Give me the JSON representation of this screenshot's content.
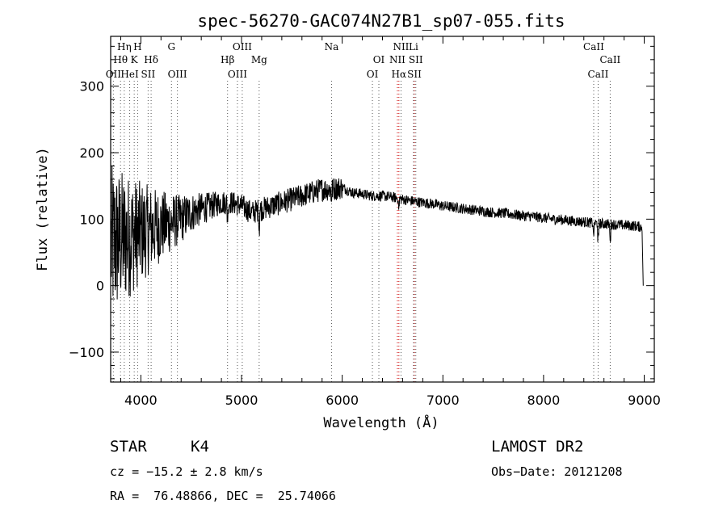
{
  "chart_data": {
    "type": "line",
    "title": "spec-56270-GAC074N27B1_sp07-055.fits",
    "xlabel": "Wavelength (Å)",
    "ylabel": "Flux (relative)",
    "xlim": [
      3700,
      9100
    ],
    "ylim": [
      -145,
      375
    ],
    "xticks": [
      4000,
      5000,
      6000,
      7000,
      8000,
      9000
    ],
    "yticks": [
      -100,
      0,
      100,
      200,
      300
    ],
    "spectrum": {
      "x": [
        3700,
        3800,
        3900,
        4000,
        4100,
        4200,
        4300,
        4400,
        4500,
        4600,
        4700,
        4800,
        4900,
        5000,
        5100,
        5200,
        5300,
        5400,
        5500,
        5600,
        5700,
        5800,
        5900,
        6000,
        6100,
        6200,
        6300,
        6400,
        6500,
        6600,
        6700,
        6800,
        6900,
        7000,
        7100,
        7200,
        7300,
        7400,
        7500,
        7600,
        7700,
        7800,
        7900,
        8000,
        8100,
        8200,
        8300,
        8400,
        8500,
        8600,
        8700,
        8800,
        8900,
        8980
      ],
      "y": [
        60,
        70,
        75,
        80,
        85,
        90,
        95,
        100,
        110,
        115,
        120,
        125,
        125,
        120,
        110,
        115,
        120,
        125,
        130,
        135,
        140,
        145,
        145,
        148,
        140,
        138,
        135,
        135,
        133,
        130,
        127,
        125,
        123,
        120,
        118,
        116,
        114,
        112,
        110,
        109,
        107,
        105,
        104,
        102,
        100,
        99,
        97,
        96,
        94,
        93,
        92,
        91,
        90,
        88
      ],
      "noise_amplitude_blue": 120,
      "noise_amplitude_red": 3
    },
    "spectral_lines": [
      {
        "label": "OII",
        "wavelength": 3727,
        "row": 3,
        "color": "#555555"
      },
      {
        "label": "Hθ",
        "wavelength": 3798,
        "row": 2,
        "color": "#555555"
      },
      {
        "label": "Hη",
        "wavelength": 3835,
        "row": 1,
        "color": "#555555"
      },
      {
        "label": "HeI",
        "wavelength": 3889,
        "row": 3,
        "color": "#555555"
      },
      {
        "label": "K",
        "wavelength": 3934,
        "row": 2,
        "color": "#555555"
      },
      {
        "label": "H",
        "wavelength": 3968,
        "row": 1,
        "color": "#555555"
      },
      {
        "label": "SII",
        "wavelength": 4072,
        "row": 3,
        "color": "#555555"
      },
      {
        "label": "Hδ",
        "wavelength": 4102,
        "row": 2,
        "color": "#555555"
      },
      {
        "label": "G",
        "wavelength": 4304,
        "row": 1,
        "color": "#555555"
      },
      {
        "label": "OIII",
        "wavelength": 4363,
        "row": 3,
        "color": "#555555"
      },
      {
        "label": "Hβ",
        "wavelength": 4861,
        "row": 2,
        "color": "#555555"
      },
      {
        "label": "OIII",
        "wavelength": 4959,
        "row": 3,
        "color": "#555555"
      },
      {
        "label": "OIII",
        "wavelength": 5007,
        "row": 1,
        "color": "#555555"
      },
      {
        "label": "Mg",
        "wavelength": 5175,
        "row": 2,
        "color": "#555555"
      },
      {
        "label": "Na",
        "wavelength": 5894,
        "row": 1,
        "color": "#555555"
      },
      {
        "label": "OI",
        "wavelength": 6300,
        "row": 3,
        "color": "#555555"
      },
      {
        "label": "OI",
        "wavelength": 6364,
        "row": 2,
        "color": "#555555"
      },
      {
        "label": "NII",
        "wavelength": 6548,
        "row": 2,
        "color": "#cc0000"
      },
      {
        "label": "Hα",
        "wavelength": 6563,
        "row": 3,
        "color": "#cc0000"
      },
      {
        "label": "NII",
        "wavelength": 6584,
        "row": 1,
        "color": "#555555"
      },
      {
        "label": "SII",
        "wavelength": 6717,
        "row": 3,
        "color": "#cc0000"
      },
      {
        "label": "SII",
        "wavelength": 6731,
        "row": 2,
        "color": "#555555"
      },
      {
        "label": "Li",
        "wavelength": 6708,
        "row": 1,
        "color": "#555555"
      },
      {
        "label": "CaII",
        "wavelength": 8498,
        "row": 1,
        "color": "#555555"
      },
      {
        "label": "CaII",
        "wavelength": 8542,
        "row": 3,
        "color": "#555555"
      },
      {
        "label": "CaII",
        "wavelength": 8662,
        "row": 2,
        "color": "#555555"
      }
    ]
  },
  "info": {
    "class_label": "STAR",
    "subclass": "K4",
    "survey": "LAMOST DR2",
    "redshift": "cz = −15.2 ± 2.8 km/s",
    "obs_date": "Obs−Date: 20121208",
    "coords": "RA =  76.48866, DEC =  25.74066"
  }
}
